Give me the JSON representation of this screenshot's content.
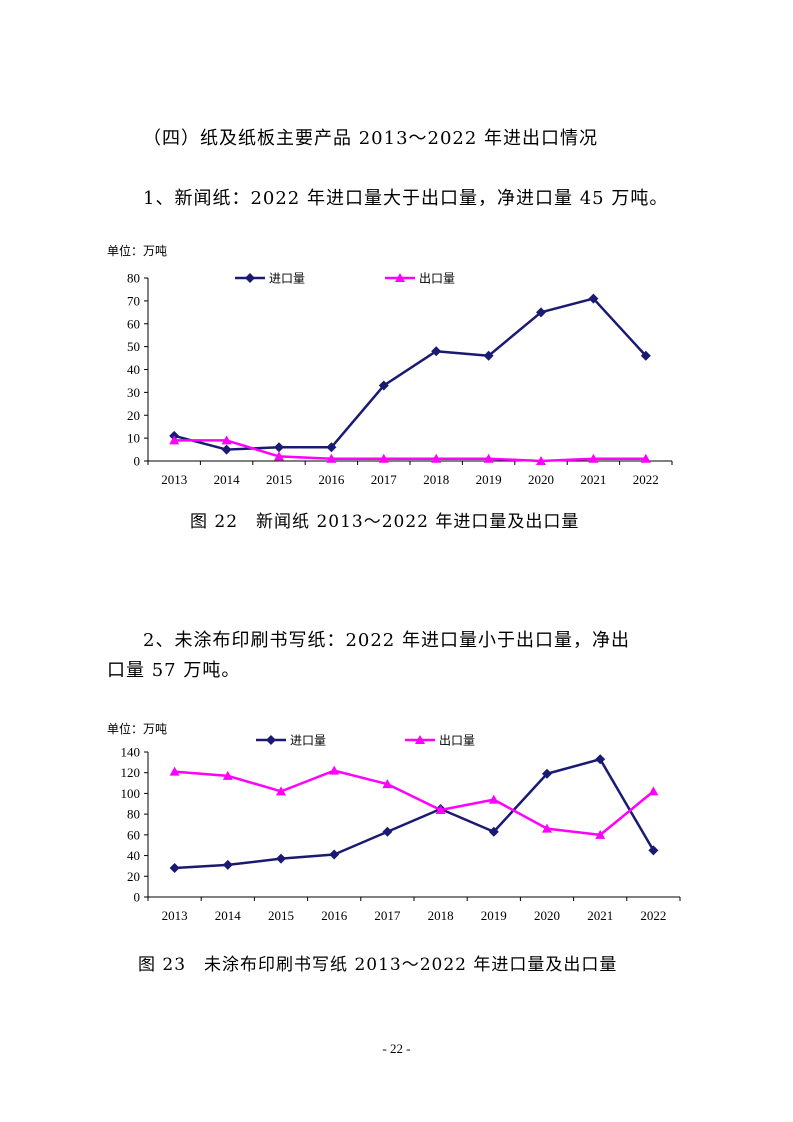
{
  "heading": "（四）纸及纸板主要产品 2013～2022 年进出口情况",
  "para1": "1、新闻纸：2022 年进口量大于出口量，净进口量 45 万吨。",
  "caption1": "图 22　新闻纸 2013～2022 年进口量及出口量",
  "para2_line1": "2、未涂布印刷书写纸：2022 年进口量小于出口量，净出",
  "para2_line2": "口量 57 万吨。",
  "caption2": "图 23　未涂布印刷书写纸 2013～2022 年进口量及出口量",
  "page_number": "- 22 -",
  "colors": {
    "import": "#1a1a73",
    "export": "#ff00ff"
  },
  "chart_data": [
    {
      "type": "line",
      "unit_label": "单位：万吨",
      "categories": [
        "2013",
        "2014",
        "2015",
        "2016",
        "2017",
        "2018",
        "2019",
        "2020",
        "2021",
        "2022"
      ],
      "series": [
        {
          "name": "进口量",
          "values": [
            11,
            5,
            6,
            6,
            33,
            48,
            46,
            65,
            71,
            46
          ]
        },
        {
          "name": "出口量",
          "values": [
            9,
            9,
            2,
            1,
            1,
            1,
            1,
            0,
            1,
            1
          ]
        }
      ],
      "yticks": [
        0,
        10,
        20,
        30,
        40,
        50,
        60,
        70,
        80
      ],
      "ylim": [
        0,
        80
      ],
      "legend": "top"
    },
    {
      "type": "line",
      "unit_label": "单位：万吨",
      "categories": [
        "2013",
        "2014",
        "2015",
        "2016",
        "2017",
        "2018",
        "2019",
        "2020",
        "2021",
        "2022"
      ],
      "series": [
        {
          "name": "进口量",
          "values": [
            28,
            31,
            37,
            41,
            63,
            85,
            63,
            119,
            133,
            45
          ]
        },
        {
          "name": "出口量",
          "values": [
            121,
            117,
            102,
            122,
            109,
            84,
            94,
            66,
            60,
            102
          ]
        }
      ],
      "yticks": [
        0,
        20,
        40,
        60,
        80,
        100,
        120,
        140
      ],
      "ylim": [
        0,
        140
      ],
      "legend": "top"
    }
  ]
}
